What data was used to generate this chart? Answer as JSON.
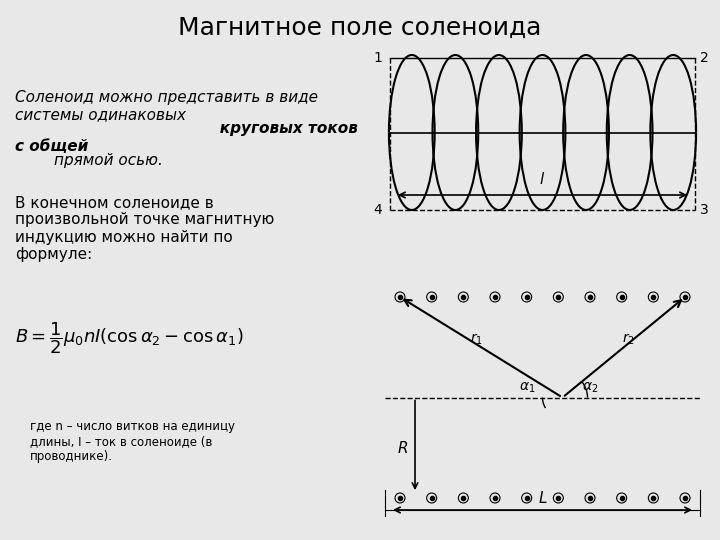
{
  "title": "Магнитное поле соленоида",
  "title_fontsize": 18,
  "bg_color": "#e8e8e8",
  "text1": "Соленоид можно представить в виде\nсистемы одинаковых ",
  "text1_bold": "круговых токов\nс общей",
  "text1_rest": " прямой осью.",
  "text2": "В конечном соленоиде в\nпроизвольной точке магнитную\nиндукцию можно найти по\nформуле:",
  "text3": "где n – число витков на единицу\nдлины, I – ток в соленоиде (в\nпроводнике).",
  "formula": "$B = \\dfrac{1}{2}\\mu_0 nI(\\cos\\alpha_2 - \\cos\\alpha_1)$"
}
